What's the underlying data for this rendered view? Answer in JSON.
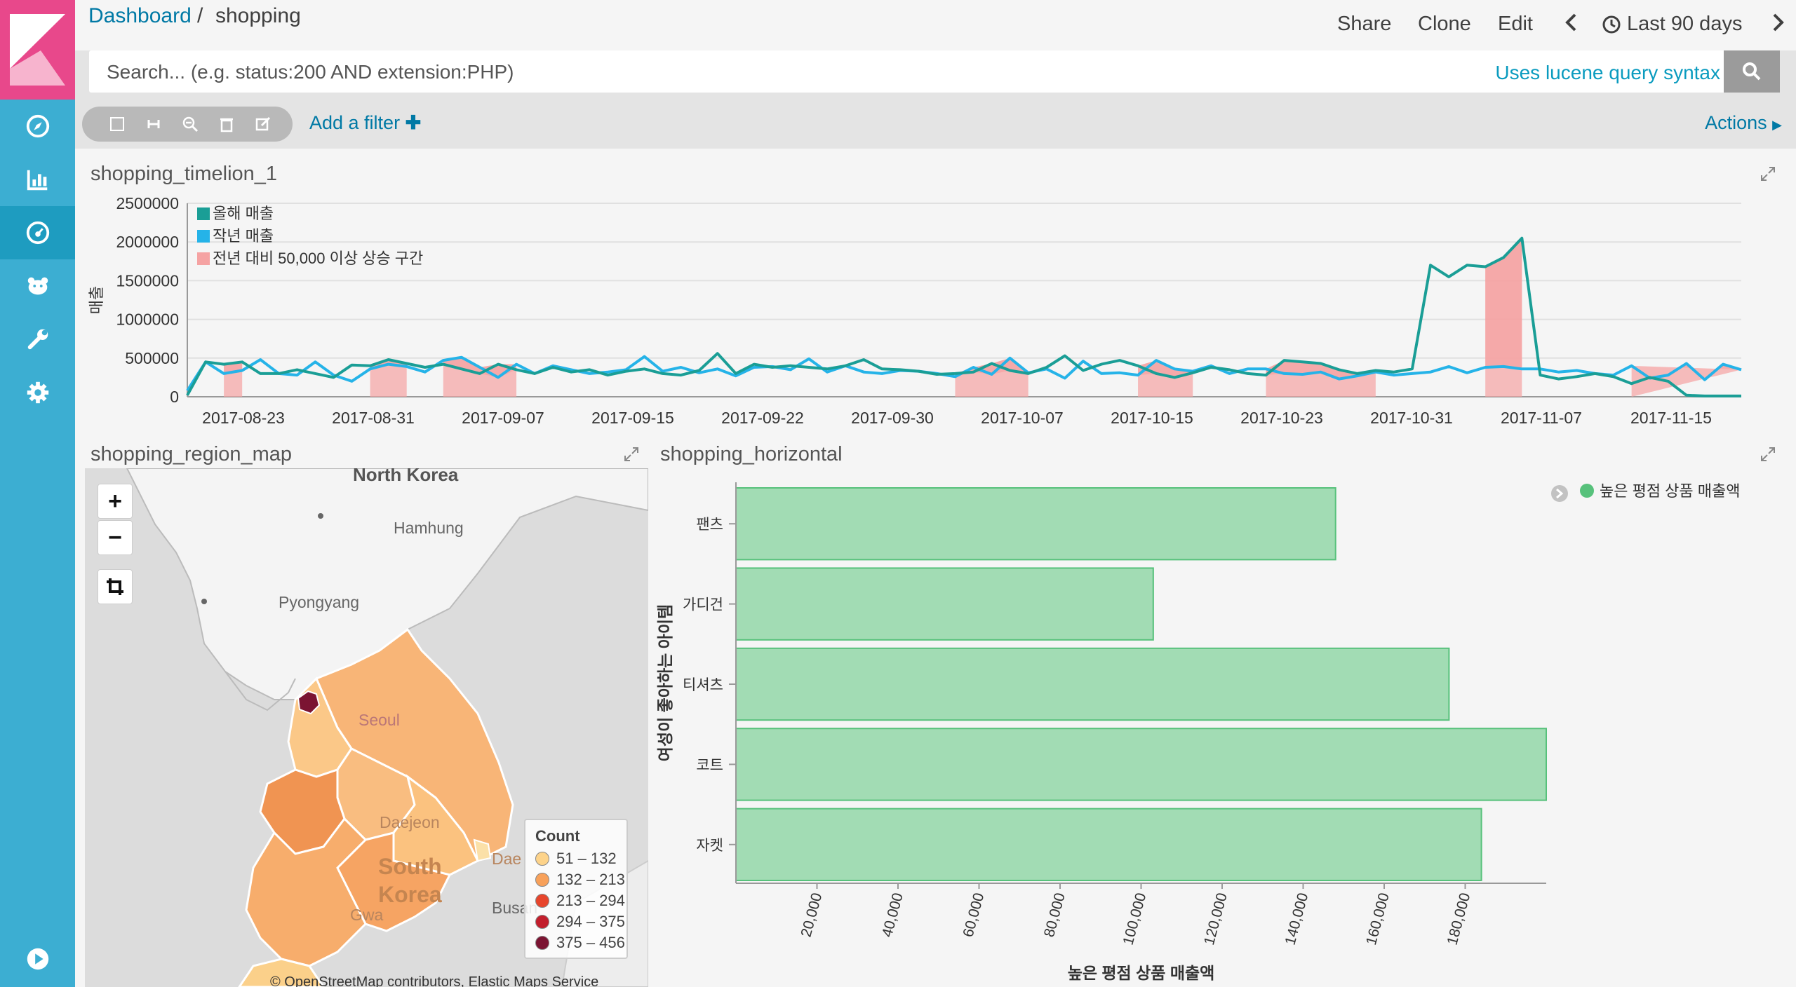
{
  "breadcrumb": {
    "root": "Dashboard",
    "separator": "/",
    "current": "shopping"
  },
  "top_actions": {
    "share": "Share",
    "clone": "Clone",
    "edit": "Edit",
    "time": "Last 90 days"
  },
  "search": {
    "placeholder": "Search... (e.g. status:200 AND extension:PHP)",
    "lucene": "Uses lucene query syntax"
  },
  "filters": {
    "add_filter": "Add a filter",
    "actions": "Actions"
  },
  "timelion": {
    "title": "shopping_timelion_1",
    "chart_data": {
      "type": "line",
      "ylabel": "매출",
      "ylim": [
        0,
        2500000
      ],
      "yticks": [
        "2500000",
        "2000000",
        "1500000",
        "1000000",
        "500000",
        "0"
      ],
      "xticks": [
        "2017-08-23",
        "2017-08-31",
        "2017-09-07",
        "2017-09-15",
        "2017-09-22",
        "2017-09-30",
        "2017-10-07",
        "2017-10-15",
        "2017-10-23",
        "2017-10-31",
        "2017-11-07",
        "2017-11-15"
      ],
      "legend": [
        {
          "name": "올해 매출",
          "color": "#1a9e96"
        },
        {
          "name": "작년 매출",
          "color": "#25b3e8"
        },
        {
          "name": "전년 대비 50,000 이상 상승 구간",
          "color": "#f5a3a3"
        }
      ],
      "series": [
        {
          "name": "올해 매출",
          "values": [
            20000,
            450000,
            420000,
            450000,
            300000,
            300000,
            350000,
            300000,
            250000,
            410000,
            400000,
            480000,
            430000,
            380000,
            420000,
            360000,
            300000,
            420000,
            350000,
            300000,
            380000,
            320000,
            350000,
            280000,
            330000,
            360000,
            300000,
            280000,
            340000,
            560000,
            300000,
            420000,
            380000,
            400000,
            380000,
            360000,
            400000,
            480000,
            360000,
            350000,
            330000,
            290000,
            300000,
            320000,
            430000,
            340000,
            300000,
            380000,
            530000,
            340000,
            420000,
            470000,
            400000,
            300000,
            250000,
            310000,
            380000,
            350000,
            300000,
            280000,
            470000,
            450000,
            430000,
            350000,
            300000,
            340000,
            320000,
            360000,
            1700000,
            1550000,
            1700000,
            1680000,
            1800000,
            2050000,
            280000,
            230000,
            260000,
            300000,
            260000,
            170000,
            250000,
            200000,
            20000,
            10000,
            10000,
            10000
          ]
        },
        {
          "name": "작년 매출",
          "values": [
            80000,
            450000,
            300000,
            340000,
            480000,
            300000,
            280000,
            450000,
            280000,
            200000,
            360000,
            420000,
            390000,
            320000,
            470000,
            510000,
            380000,
            250000,
            420000,
            300000,
            400000,
            350000,
            300000,
            320000,
            350000,
            520000,
            330000,
            380000,
            310000,
            360000,
            270000,
            380000,
            390000,
            350000,
            490000,
            320000,
            400000,
            320000,
            300000,
            340000,
            330000,
            300000,
            260000,
            380000,
            290000,
            500000,
            310000,
            360000,
            240000,
            460000,
            300000,
            310000,
            280000,
            470000,
            360000,
            330000,
            400000,
            300000,
            360000,
            360000,
            300000,
            290000,
            320000,
            230000,
            270000,
            320000,
            280000,
            300000,
            320000,
            390000,
            310000,
            380000,
            390000,
            360000,
            360000,
            320000,
            340000,
            300000,
            280000,
            400000,
            240000,
            280000,
            430000,
            220000,
            420000,
            350000
          ]
        }
      ],
      "highlight_ranges": [
        [
          2,
          3
        ],
        [
          10,
          12
        ],
        [
          14,
          18
        ],
        [
          42,
          46
        ],
        [
          52,
          55
        ],
        [
          59,
          65
        ],
        [
          71,
          73
        ],
        [
          79,
          86
        ]
      ]
    }
  },
  "region_map": {
    "title": "shopping_region_map",
    "zoom_in": "+",
    "zoom_out": "−",
    "places": {
      "nk": "North Korea",
      "hamhung": "Hamhung",
      "pyongyang": "Pyongyang",
      "seoul": "Seoul",
      "daejeon": "Daejeon",
      "south": "South",
      "korea": "Korea",
      "gwangju": "Gwa",
      "busan": "Busan",
      "daegu": "Dae"
    },
    "legend_title": "Count",
    "legend": [
      {
        "label": "51 – 132",
        "color": "#fdd38a"
      },
      {
        "label": "132 – 213",
        "color": "#f8a15a"
      },
      {
        "label": "213 – 294",
        "color": "#e7452c"
      },
      {
        "label": "294 – 375",
        "color": "#c21e2c"
      },
      {
        "label": "375 – 456",
        "color": "#7b1432"
      }
    ],
    "attribution": "© OpenStreetMap contributors, Elastic Maps Service"
  },
  "horizontal": {
    "title": "shopping_horizontal",
    "chart_data": {
      "type": "bar",
      "orientation": "horizontal",
      "categories": [
        "팬츠",
        "가디건",
        "티셔츠",
        "코트",
        "자켓"
      ],
      "values": [
        148000,
        103000,
        176000,
        200000,
        184000
      ],
      "xlim": [
        0,
        200000
      ],
      "xticks": [
        "20,000",
        "40,000",
        "60,000",
        "80,000",
        "100,000",
        "120,000",
        "140,000",
        "160,000",
        "180,000"
      ],
      "xlabel": "높은 평점 상품 매출액",
      "ylabel": "여성이 좋아하는 아이템",
      "legend": [
        {
          "name": "높은 평점 상품 매출액",
          "color": "#57c17b"
        }
      ]
    }
  }
}
